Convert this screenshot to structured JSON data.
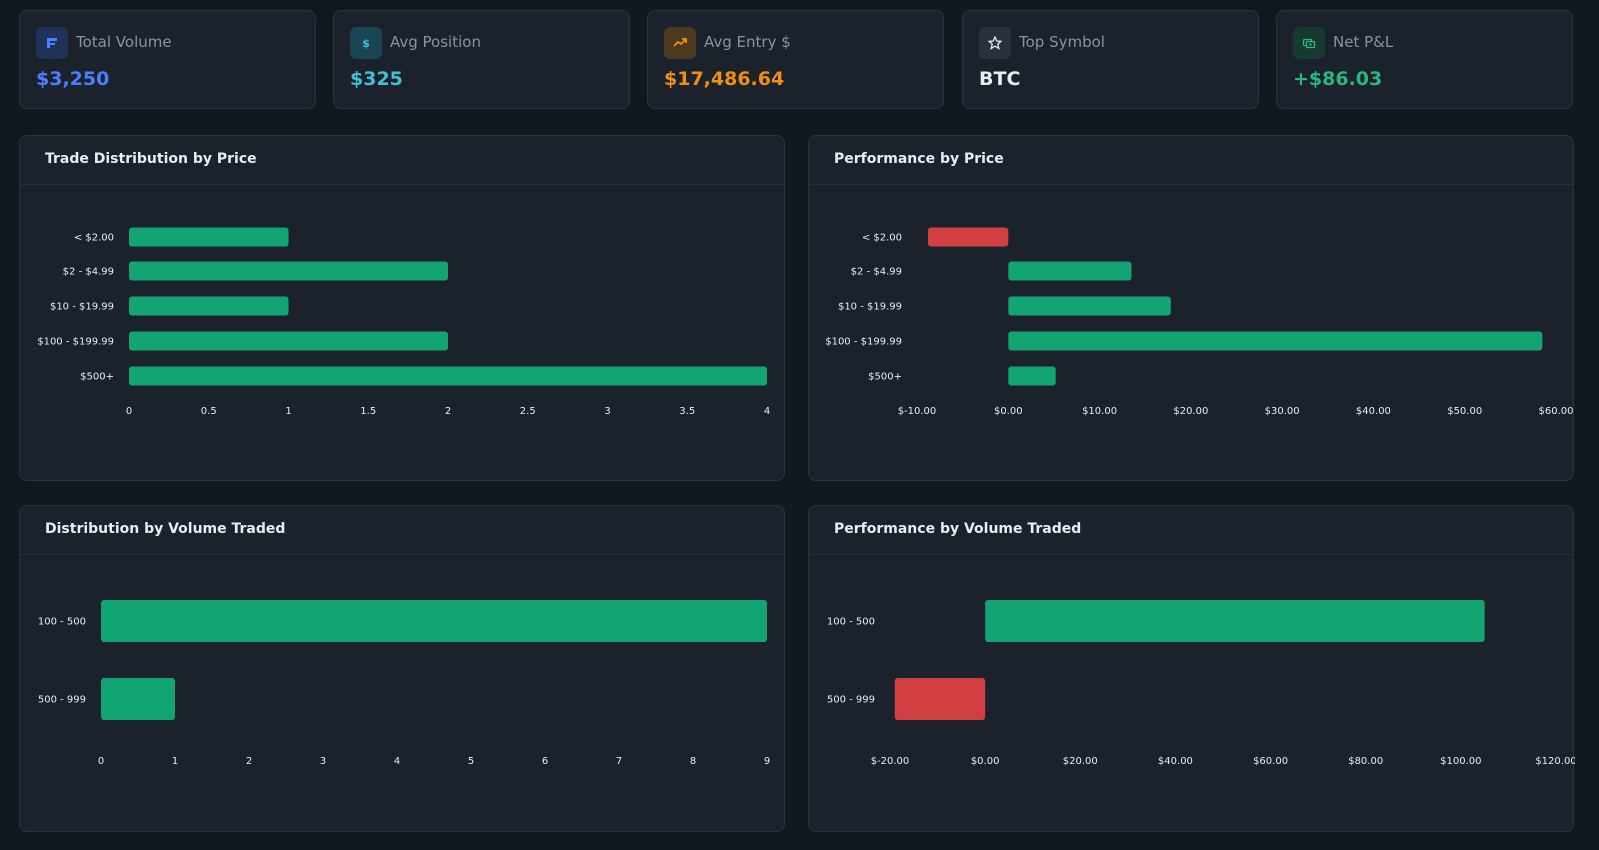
{
  "stats": [
    {
      "label": "Total Volume",
      "value": "$3,250",
      "icon": "flag-icon",
      "color": "#4a7fff",
      "icon_bg": "#1f3258"
    },
    {
      "label": "Avg Position",
      "value": "$325",
      "icon": "dollar-icon",
      "color": "#3fc1d6",
      "icon_bg": "#1a4552"
    },
    {
      "label": "Avg Entry $",
      "value": "$17,486.64",
      "icon": "trend-up-icon",
      "color": "#f0900e",
      "icon_bg": "#4b3a1d"
    },
    {
      "label": "Top Symbol",
      "value": "BTC",
      "icon": "star-icon",
      "color": "#e6edf3",
      "icon_bg": "#2a313b"
    },
    {
      "label": "Net P&L",
      "value": "+$86.03",
      "icon": "money-icon",
      "color": "#28b780",
      "icon_bg": "#173a30"
    }
  ],
  "colors": {
    "positive": "#13a474",
    "negative": "#d13f43"
  },
  "chart_data": [
    {
      "title": "Trade Distribution by Price",
      "type": "bar",
      "orientation": "horizontal",
      "categories": [
        "< $2.00",
        "$2 - $4.99",
        "$10 - $19.99",
        "$100 - $199.99",
        "$500+"
      ],
      "values": [
        1,
        2,
        1,
        2,
        4
      ],
      "xlim": [
        0,
        4
      ],
      "xticks": [
        0,
        0.5,
        1,
        1.5,
        2,
        2.5,
        3,
        3.5,
        4
      ],
      "tick_labels": [
        "0",
        "0.5",
        "1",
        "1.5",
        "2",
        "2.5",
        "3",
        "3.5",
        "4"
      ]
    },
    {
      "title": "Performance by Price",
      "type": "bar",
      "orientation": "horizontal",
      "categories": [
        "< $2.00",
        "$2 - $4.99",
        "$10 - $19.99",
        "$100 - $199.99",
        "$500+"
      ],
      "values": [
        -8.8,
        13.5,
        17.8,
        58.5,
        5.2
      ],
      "xlim": [
        -10,
        60
      ],
      "xticks": [
        -10,
        0,
        10,
        20,
        30,
        40,
        50,
        60
      ],
      "tick_labels": [
        "$-10.00",
        "$0.00",
        "$10.00",
        "$20.00",
        "$30.00",
        "$40.00",
        "$50.00",
        "$60.00"
      ]
    },
    {
      "title": "Distribution by Volume Traded",
      "type": "bar",
      "orientation": "horizontal",
      "categories": [
        "100 - 500",
        "500 - 999"
      ],
      "values": [
        9,
        1
      ],
      "xlim": [
        0,
        9
      ],
      "xticks": [
        0,
        1,
        2,
        3,
        4,
        5,
        6,
        7,
        8,
        9
      ],
      "tick_labels": [
        "0",
        "1",
        "2",
        "3",
        "4",
        "5",
        "6",
        "7",
        "8",
        "9"
      ]
    },
    {
      "title": "Performance by Volume Traded",
      "type": "bar",
      "orientation": "horizontal",
      "categories": [
        "100 - 500",
        "500 - 999"
      ],
      "values": [
        105,
        -19
      ],
      "xlim": [
        -20,
        120
      ],
      "xticks": [
        -20,
        0,
        20,
        40,
        60,
        80,
        100,
        120
      ],
      "tick_labels": [
        "$-20.00",
        "$0.00",
        "$20.00",
        "$40.00",
        "$60.00",
        "$80.00",
        "$100.00",
        "$120.00"
      ]
    }
  ]
}
